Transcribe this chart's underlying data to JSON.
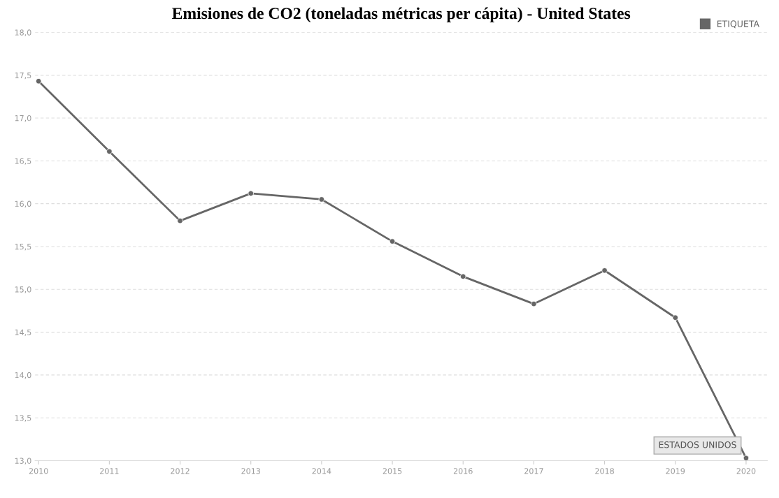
{
  "chart_data": {
    "type": "line",
    "title": "Emisiones de CO2 (toneladas métricas per cápita) - United States",
    "categories": [
      "2010",
      "2011",
      "2012",
      "2013",
      "2014",
      "2015",
      "2016",
      "2017",
      "2018",
      "2019",
      "2020"
    ],
    "series": [
      {
        "name": "ETIQUETA",
        "color": "#666666",
        "values": [
          17.43,
          16.61,
          15.8,
          16.12,
          16.05,
          15.56,
          15.15,
          14.83,
          15.22,
          14.67,
          13.03
        ]
      }
    ],
    "ylim": [
      13.0,
      18.0
    ],
    "yticks": [
      {
        "value": 13.0,
        "label": "13,0"
      },
      {
        "value": 13.5,
        "label": "13,5"
      },
      {
        "value": 14.0,
        "label": "14,0"
      },
      {
        "value": 14.5,
        "label": "14,5"
      },
      {
        "value": 15.0,
        "label": "15,0"
      },
      {
        "value": 15.5,
        "label": "15,5"
      },
      {
        "value": 16.0,
        "label": "16,0"
      },
      {
        "value": 16.5,
        "label": "16,5"
      },
      {
        "value": 17.0,
        "label": "17,0"
      },
      {
        "value": 17.5,
        "label": "17,5"
      },
      {
        "value": 18.0,
        "label": "18,0"
      }
    ],
    "annotations": [
      {
        "text": "ESTADOS UNIDOS",
        "x": "2020",
        "y": 13.03
      }
    ],
    "grid": "y",
    "legend": "top right",
    "marker": "circle",
    "line_style": "solid"
  }
}
